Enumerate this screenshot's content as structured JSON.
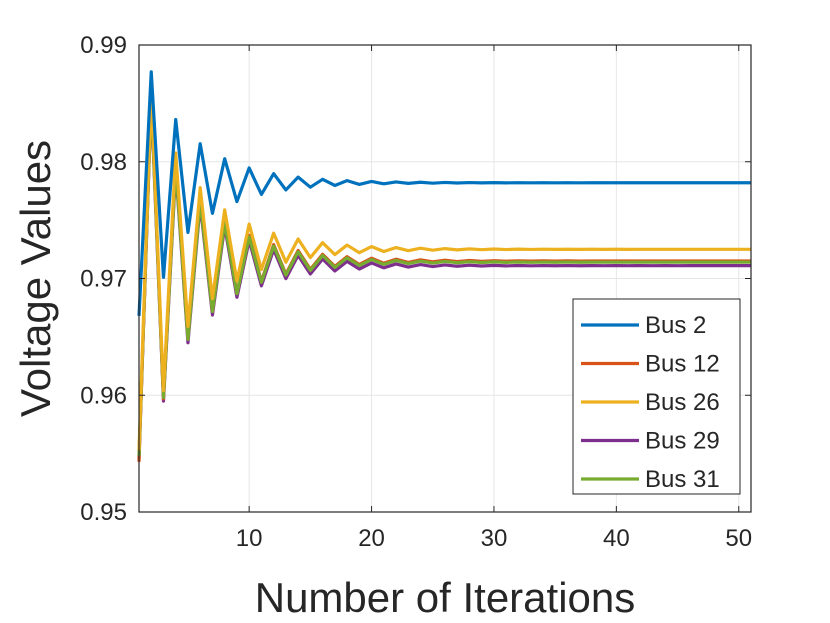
{
  "chart_data": {
    "type": "line",
    "title": "",
    "xlabel": "Number of Iterations",
    "ylabel": "Voltage Values",
    "xlim": [
      1,
      51
    ],
    "ylim": [
      0.95,
      0.99
    ],
    "xticks": [
      10,
      20,
      30,
      40,
      50
    ],
    "yticks": [
      0.95,
      0.96,
      0.97,
      0.98,
      0.99
    ],
    "xtick_labels": [
      "10",
      "20",
      "30",
      "40",
      "50"
    ],
    "ytick_labels": [
      "0.95",
      "0.96",
      "0.97",
      "0.98",
      "0.99"
    ],
    "grid": true,
    "legend_position": "bottom-right",
    "series": [
      {
        "name": "Bus 2",
        "color": "#0072BD",
        "start": 0.9668,
        "final": 0.9782,
        "peak": 0.9877,
        "trough": 0.9701,
        "decay": 0.785
      },
      {
        "name": "Bus 12",
        "color": "#D95319",
        "start": 0.9543,
        "final": 0.9715,
        "peak": 0.9859,
        "trough": 0.9597,
        "decay": 0.8
      },
      {
        "name": "Bus 26",
        "color": "#EDB120",
        "start": 0.9553,
        "final": 0.9725,
        "peak": 0.9862,
        "trough": 0.9604,
        "decay": 0.8
      },
      {
        "name": "Bus 29",
        "color": "#7E2F8E",
        "start": 0.9546,
        "final": 0.9711,
        "peak": 0.9853,
        "trough": 0.9595,
        "decay": 0.8
      },
      {
        "name": "Bus 31",
        "color": "#77AC30",
        "start": 0.9548,
        "final": 0.9714,
        "peak": 0.9856,
        "trough": 0.9598,
        "decay": 0.8
      }
    ]
  }
}
